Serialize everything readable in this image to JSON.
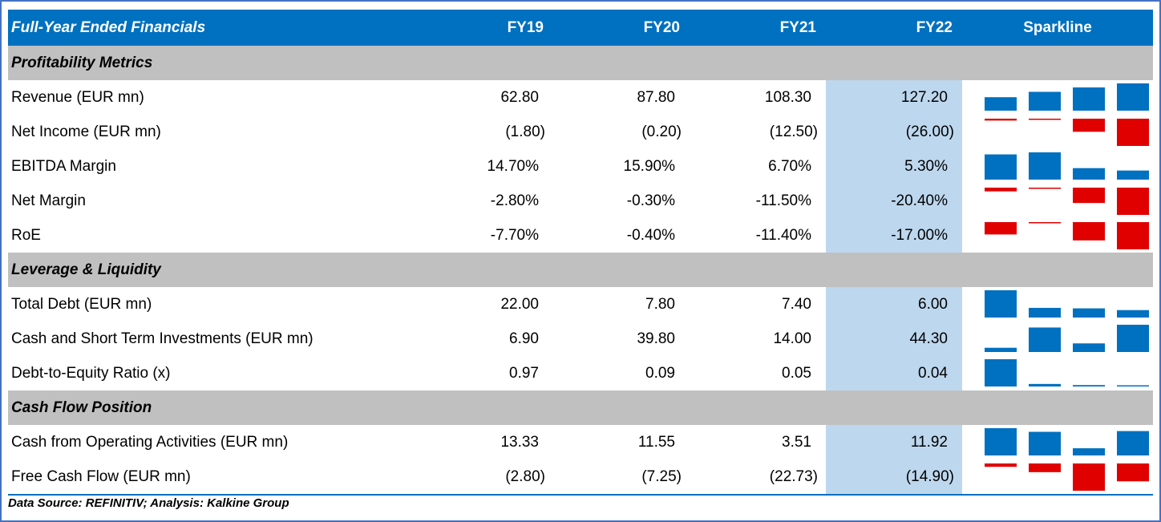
{
  "header": {
    "title": "Full-Year Ended Financials",
    "fy19": "FY19",
    "fy20": "FY20",
    "fy21": "FY21",
    "fy22": "FY22",
    "sparkline": "Sparkline"
  },
  "colors": {
    "header_bg": "#0070c0",
    "section_bg": "#c0c0c0",
    "fy22_highlight": "#bdd7ee",
    "spark_positive": "#0070c0",
    "spark_negative": "#e00000"
  },
  "sections": [
    {
      "title": "Profitability Metrics",
      "rows": [
        {
          "label": "Revenue (EUR mn)",
          "values": [
            "62.80",
            "87.80",
            "108.30",
            "127.20"
          ],
          "spark": [
            62.8,
            87.8,
            108.3,
            127.2
          ]
        },
        {
          "label": "Net Income (EUR mn)",
          "values": [
            "(1.80)",
            "(0.20)",
            "(12.50)",
            "(26.00)"
          ],
          "spark": [
            -1.8,
            -0.2,
            -12.5,
            -26.0
          ]
        },
        {
          "label": "EBITDA Margin",
          "values": [
            "14.70%",
            "15.90%",
            "6.70%",
            "5.30%"
          ],
          "spark": [
            14.7,
            15.9,
            6.7,
            5.3
          ]
        },
        {
          "label": "Net Margin",
          "values": [
            "-2.80%",
            "-0.30%",
            "-11.50%",
            "-20.40%"
          ],
          "spark": [
            -2.8,
            -0.3,
            -11.5,
            -20.4
          ]
        },
        {
          "label": "RoE",
          "values": [
            "-7.70%",
            "-0.40%",
            "-11.40%",
            "-17.00%"
          ],
          "spark": [
            -7.7,
            -0.4,
            -11.4,
            -17.0
          ]
        }
      ]
    },
    {
      "title": "Leverage & Liquidity",
      "rows": [
        {
          "label": "Total Debt (EUR mn)",
          "values": [
            "22.00",
            "7.80",
            "7.40",
            "6.00"
          ],
          "spark": [
            22.0,
            7.8,
            7.4,
            6.0
          ]
        },
        {
          "label": "Cash and Short Term Investments (EUR mn)",
          "values": [
            "6.90",
            "39.80",
            "14.00",
            "44.30"
          ],
          "spark": [
            6.9,
            39.8,
            14.0,
            44.3
          ]
        },
        {
          "label": "Debt-to-Equity Ratio (x)",
          "values": [
            "0.97",
            "0.09",
            "0.05",
            "0.04"
          ],
          "spark": [
            0.97,
            0.09,
            0.05,
            0.04
          ]
        }
      ]
    },
    {
      "title": "Cash Flow Position",
      "rows": [
        {
          "label": "Cash from Operating Activities (EUR mn)",
          "values": [
            "13.33",
            "11.55",
            "3.51",
            "11.92"
          ],
          "spark": [
            13.33,
            11.55,
            3.51,
            11.92
          ]
        },
        {
          "label": "Free Cash Flow (EUR mn)",
          "values": [
            "(2.80)",
            "(7.25)",
            "(22.73)",
            "(14.90)"
          ],
          "spark": [
            -2.8,
            -7.25,
            -22.73,
            -14.9
          ]
        }
      ]
    }
  ],
  "footer": "Data Source: REFINITIV; Analysis: Kalkine Group"
}
